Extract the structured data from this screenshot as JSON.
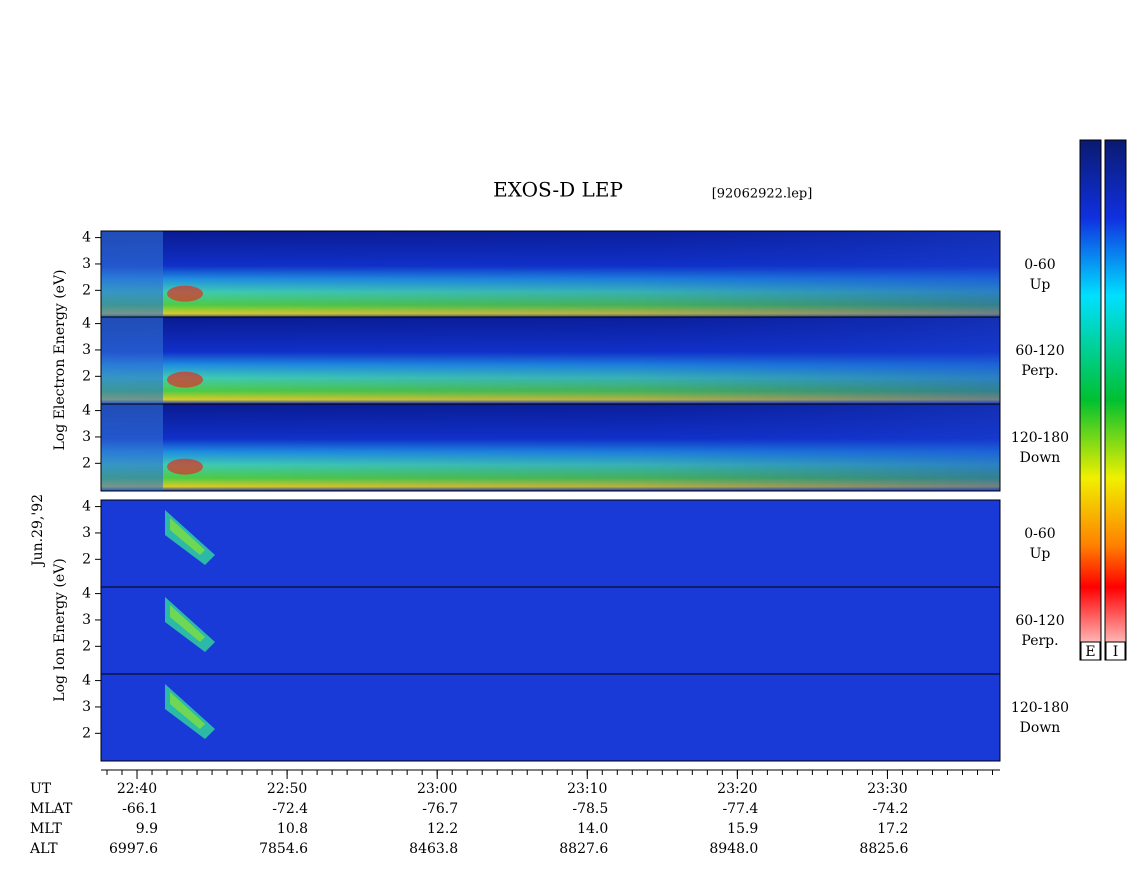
{
  "title": "EXOS-D LEP",
  "file": "[92062922.lep]",
  "date": "Jun.29,'92",
  "electron_axis_label": "Log  Electron  Energy (eV)",
  "ion_axis_label": "Log  Ion  Energy (eV)",
  "ylim": [
    0.95,
    4.25
  ],
  "panels": [
    {
      "label": [
        "0-60",
        "Up"
      ],
      "yticks": [
        2,
        3,
        4
      ]
    },
    {
      "label": [
        "60-120",
        "Perp."
      ],
      "yticks": [
        2,
        3,
        4
      ]
    },
    {
      "label": [
        "120-180",
        "Down"
      ],
      "yticks": [
        2,
        3,
        4
      ]
    },
    {
      "label": [
        "0-60",
        "Up"
      ],
      "yticks": [
        2,
        3,
        4
      ]
    },
    {
      "label": [
        "60-120",
        "Perp."
      ],
      "yticks": [
        2,
        3,
        4
      ]
    },
    {
      "label": [
        "120-180",
        "Down"
      ],
      "yticks": [
        2,
        3,
        4
      ]
    }
  ],
  "time_axis": {
    "xlim": [
      37.6,
      97.5
    ],
    "ticks": [
      {
        "value": 40,
        "label": "22:40"
      },
      {
        "value": 50,
        "label": "22:50"
      },
      {
        "value": 60,
        "label": "23:00"
      },
      {
        "value": 70,
        "label": "23:10"
      },
      {
        "value": 80,
        "label": "23:20"
      },
      {
        "value": 90,
        "label": "23:30"
      }
    ]
  },
  "rows": [
    {
      "name": "UT"
    },
    {
      "name": "MLAT",
      "values": [
        "-66.1",
        "-72.4",
        "-76.7",
        "-78.5",
        "-77.4",
        "-74.2"
      ]
    },
    {
      "name": "MLT",
      "values": [
        "9.9",
        "10.8",
        "12.2",
        "14.0",
        "15.9",
        "17.2"
      ]
    },
    {
      "name": "ALT",
      "values": [
        "6997.6",
        "7854.6",
        "8463.8",
        "8827.6",
        "8948.0",
        "8825.6"
      ]
    }
  ],
  "colorbars": [
    "E",
    "I"
  ]
}
